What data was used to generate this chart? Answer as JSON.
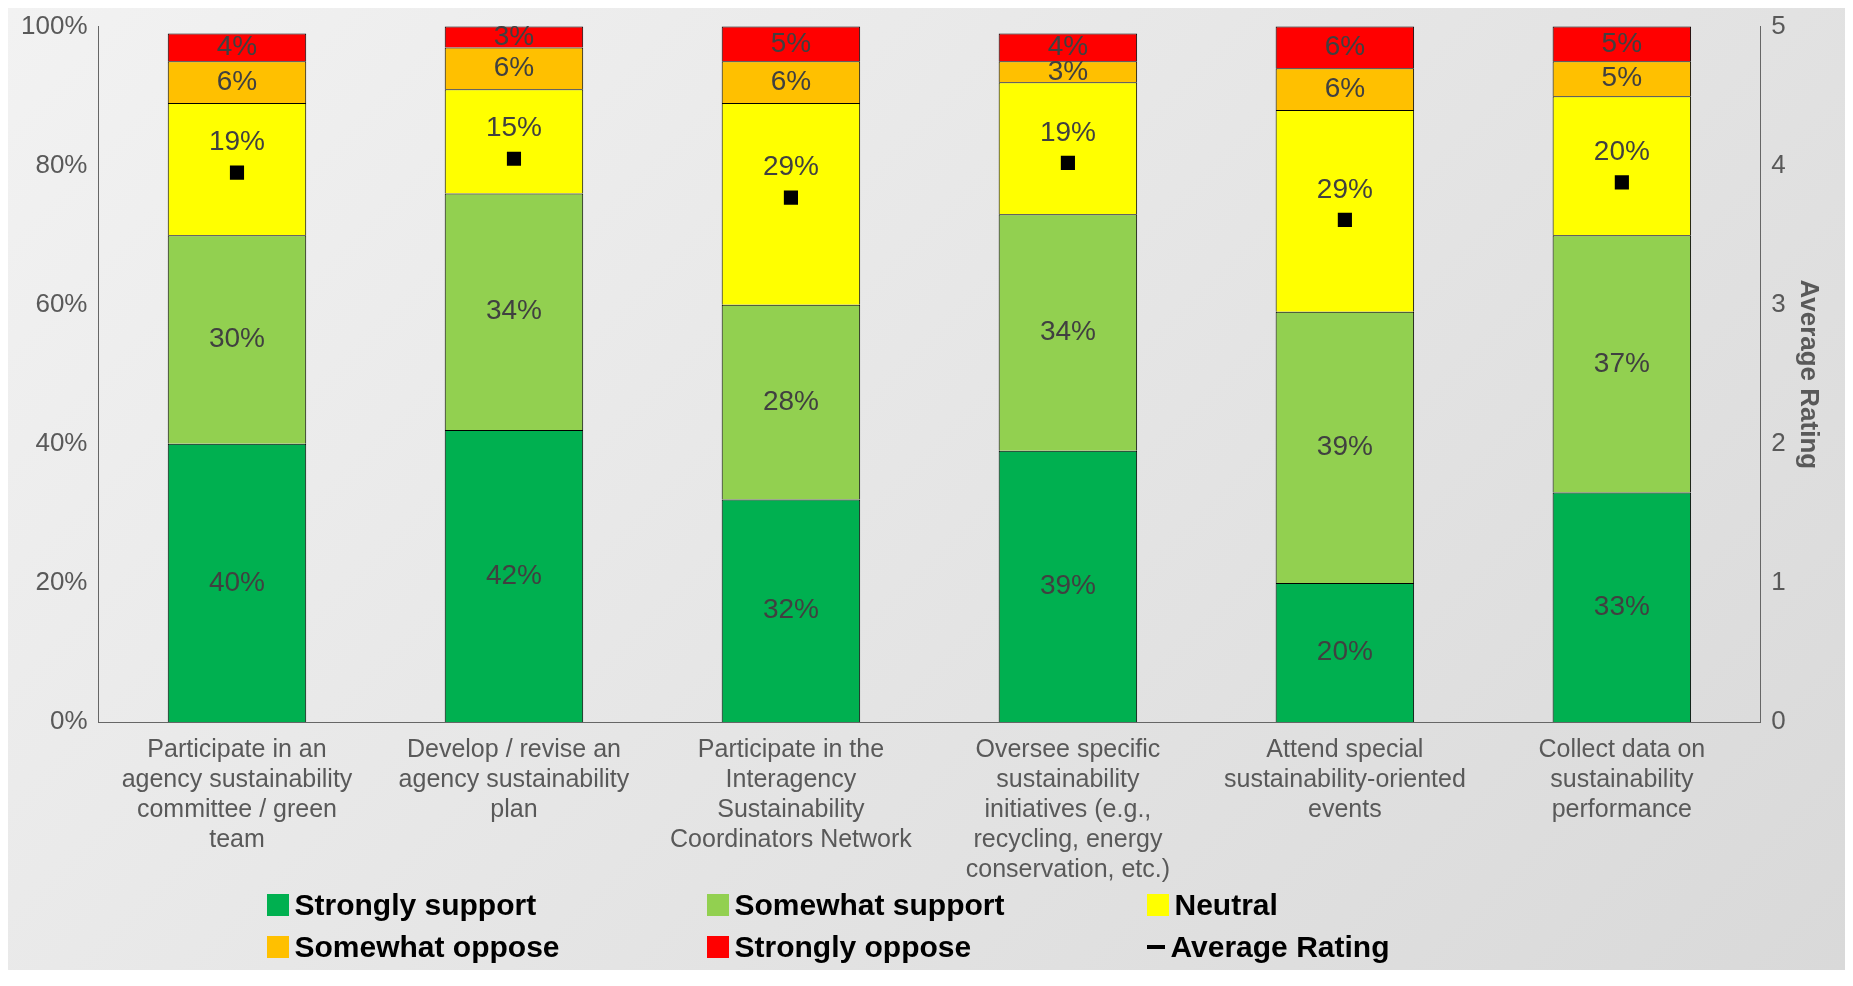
{
  "chart_data": {
    "type": "bar",
    "stacked": true,
    "categories": [
      "Participate in an agency sustainability committee / green team",
      "Develop / revise an agency sustainability plan",
      "Participate in the Interagency Sustainability Coordinators Network",
      "Oversee specific sustainability initiatives (e.g., recycling, energy conservation, etc.)",
      "Attend special sustainability-oriented events",
      "Collect data on sustainability performance"
    ],
    "series": [
      {
        "name": "Strongly support",
        "color": "#00b050",
        "values": [
          40,
          42,
          32,
          39,
          20,
          33
        ],
        "value_labels": [
          "40%",
          "42%",
          "32%",
          "39%",
          "20%",
          "33%"
        ]
      },
      {
        "name": "Somewhat support",
        "color": "#92d050",
        "values": [
          30,
          34,
          28,
          34,
          39,
          37
        ],
        "value_labels": [
          "30%",
          "34%",
          "28%",
          "34%",
          "39%",
          "37%"
        ]
      },
      {
        "name": "Neutral",
        "color": "#ffff00",
        "values": [
          19,
          15,
          29,
          19,
          29,
          20
        ],
        "value_labels": [
          "19%",
          "15%",
          "29%",
          "19%",
          "29%",
          "20%"
        ]
      },
      {
        "name": "Somewhat oppose",
        "color": "#ffc000",
        "values": [
          6,
          6,
          6,
          3,
          6,
          5
        ],
        "value_labels": [
          "6%",
          "6%",
          "6%",
          "3%",
          "6%",
          "5%"
        ]
      },
      {
        "name": "Strongly oppose",
        "color": "#ff0000",
        "values": [
          4,
          3,
          5,
          4,
          6,
          5
        ],
        "value_labels": [
          "4%",
          "3%",
          "5%",
          "4%",
          "6%",
          "5%"
        ]
      },
      {
        "name": "Average Rating",
        "type": "scatter",
        "axis": "y2",
        "color": "#000000",
        "values": [
          3.95,
          4.05,
          3.77,
          4.02,
          3.61,
          3.88
        ]
      }
    ],
    "ylim": [
      0,
      100
    ],
    "yticks": [
      {
        "value": 0,
        "label": "0%"
      },
      {
        "value": 20,
        "label": "20%"
      },
      {
        "value": 40,
        "label": "40%"
      },
      {
        "value": 60,
        "label": "60%"
      },
      {
        "value": 80,
        "label": "80%"
      },
      {
        "value": 100,
        "label": "100%"
      }
    ],
    "y2lim": [
      0,
      5
    ],
    "y2ticks": [
      0,
      1,
      2,
      3,
      4,
      5
    ],
    "y2label": "Average Rating",
    "grid": false,
    "legend": "bottom"
  }
}
